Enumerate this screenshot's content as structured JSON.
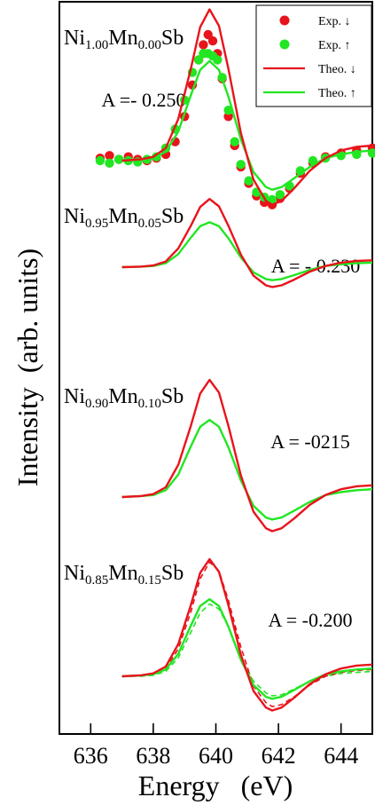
{
  "chart_data": {
    "type": "line",
    "xlabel": "Energy   (eV)",
    "ylabel": "Intensity  (arb. units)",
    "xlim": [
      635,
      645
    ],
    "xticks": [
      636,
      638,
      640,
      642,
      644
    ],
    "legend": {
      "placement": "top-right",
      "entries": [
        {
          "label": "Exp. ↓",
          "kind": "marker",
          "color": "#e8141c"
        },
        {
          "label": "Exp. ↑",
          "kind": "marker",
          "color": "#22e622"
        },
        {
          "label": "Theo. ↓",
          "kind": "line",
          "color": "#e8141c"
        },
        {
          "label": "Theo. ↑",
          "kind": "line",
          "color": "#22e622"
        }
      ]
    },
    "colors": {
      "down": "#e8141c",
      "up": "#22e622"
    },
    "panels": [
      {
        "label": {
          "base": "Ni",
          "s1": "1.00",
          "mid": "Mn",
          "s2": "0.00",
          "tail": "Sb"
        },
        "asym": "A =- 0.250",
        "baseline": 0,
        "down": {
          "x": [
            637,
            637.6,
            638,
            638.4,
            638.8,
            639.2,
            639.5,
            639.8,
            640.1,
            640.4,
            640.8,
            641.2,
            641.6,
            641.8,
            642.1,
            642.5,
            643,
            643.5,
            644,
            644.5,
            645
          ],
          "y": [
            0,
            1,
            3,
            10,
            33,
            73,
            106,
            120,
            107,
            73,
            22,
            -15,
            -32,
            -35,
            -32,
            -22,
            -8,
            2,
            8,
            11,
            12
          ]
        },
        "up": {
          "x": [
            637,
            637.6,
            638,
            638.4,
            638.8,
            639.2,
            639.5,
            639.8,
            640.1,
            640.4,
            640.8,
            641.2,
            641.6,
            641.8,
            642.1,
            642.5,
            643,
            643.5,
            644,
            644.5,
            645
          ],
          "y": [
            0,
            1,
            2,
            7,
            23,
            52,
            72,
            79,
            72,
            51,
            17,
            -9,
            -21,
            -23,
            -21,
            -14,
            -5,
            2,
            5,
            7,
            8
          ]
        },
        "exp_down": {
          "x": [
            636.3,
            636.6,
            636.9,
            637.2,
            637.5,
            637.8,
            638.1,
            638.4,
            638.7,
            639.0,
            639.25,
            639.45,
            639.6,
            639.75,
            639.9,
            640.05,
            640.2,
            640.4,
            640.6,
            640.8,
            641.05,
            641.3,
            641.55,
            641.8,
            642.05,
            642.35,
            642.7,
            643.1,
            643.5,
            644.0,
            644.5,
            645.0
          ],
          "y": [
            2,
            4,
            1,
            3,
            1,
            0,
            2,
            5,
            15,
            35,
            60,
            80,
            92,
            100,
            95,
            85,
            65,
            35,
            12,
            -5,
            -18,
            -28,
            -33,
            -35,
            -30,
            -22,
            -10,
            -2,
            3,
            6,
            8,
            10
          ]
        },
        "exp_up": {
          "x": [
            636.3,
            636.6,
            636.9,
            637.2,
            637.5,
            637.8,
            638.1,
            638.4,
            638.7,
            639.0,
            639.25,
            639.45,
            639.6,
            639.75,
            639.9,
            640.05,
            640.2,
            640.4,
            640.6,
            640.8,
            641.05,
            641.3,
            641.55,
            641.8,
            642.05,
            642.35,
            642.7,
            643.1,
            643.5,
            644.0,
            644.5,
            645.0
          ],
          "y": [
            0,
            -2,
            1,
            0,
            -1,
            1,
            3,
            10,
            25,
            48,
            70,
            80,
            85,
            85,
            83,
            80,
            66,
            40,
            15,
            -3,
            -16,
            -25,
            -29,
            -31,
            -27,
            -20,
            -8,
            0,
            2,
            4,
            5,
            6
          ]
        }
      },
      {
        "label": {
          "base": "Ni",
          "s1": "0.95",
          "mid": "Mn",
          "s2": "0.05",
          "tail": "Sb"
        },
        "asym": "A = - 0.230",
        "baseline": 0,
        "down": {
          "x": [
            637,
            637.6,
            638,
            638.4,
            638.8,
            639.2,
            639.5,
            639.8,
            640.1,
            640.4,
            640.8,
            641.2,
            641.6,
            641.8,
            642.1,
            642.5,
            643,
            643.5,
            644,
            644.5,
            645
          ],
          "y": [
            0,
            1,
            3,
            10,
            33,
            73,
            106,
            120,
            107,
            73,
            22,
            -15,
            -32,
            -35,
            -32,
            -22,
            -8,
            2,
            8,
            11,
            12
          ]
        },
        "up": {
          "x": [
            637,
            637.6,
            638,
            638.4,
            638.8,
            639.2,
            639.5,
            639.8,
            640.1,
            640.4,
            640.8,
            641.2,
            641.6,
            641.8,
            642.1,
            642.5,
            643,
            643.5,
            644,
            644.5,
            645
          ],
          "y": [
            0,
            1,
            2,
            7,
            23,
            52,
            72,
            79,
            72,
            51,
            17,
            -9,
            -21,
            -23,
            -21,
            -14,
            -5,
            2,
            5,
            7,
            8
          ]
        }
      },
      {
        "label": {
          "base": "Ni",
          "s1": "0.90",
          "mid": "Mn",
          "s2": "0.10",
          "tail": "Sb"
        },
        "asym": "A = -0215",
        "baseline": 0,
        "down": {
          "x": [
            637,
            637.6,
            638,
            638.4,
            638.8,
            639.2,
            639.5,
            639.8,
            640.1,
            640.4,
            640.8,
            641.2,
            641.6,
            641.8,
            642.1,
            642.5,
            643,
            643.5,
            644,
            644.5,
            645
          ],
          "y": [
            0,
            1,
            3,
            10,
            33,
            73,
            106,
            120,
            107,
            73,
            22,
            -15,
            -32,
            -35,
            -32,
            -22,
            -8,
            2,
            8,
            11,
            12
          ]
        },
        "up": {
          "x": [
            637,
            637.6,
            638,
            638.4,
            638.8,
            639.2,
            639.5,
            639.8,
            640.1,
            640.4,
            640.8,
            641.2,
            641.6,
            641.8,
            642.1,
            642.5,
            643,
            643.5,
            644,
            644.5,
            645
          ],
          "y": [
            0,
            1,
            2,
            7,
            23,
            52,
            72,
            79,
            72,
            51,
            17,
            -9,
            -21,
            -23,
            -21,
            -14,
            -5,
            2,
            5,
            7,
            8
          ]
        }
      },
      {
        "label": {
          "base": "Ni",
          "s1": "0.85",
          "mid": "Mn",
          "s2": "0.15",
          "tail": "Sb"
        },
        "asym": "A = -0.200",
        "baseline": 0,
        "down": {
          "x": [
            637,
            637.6,
            638,
            638.4,
            638.8,
            639.2,
            639.5,
            639.8,
            640.1,
            640.4,
            640.8,
            641.2,
            641.6,
            641.8,
            642.1,
            642.5,
            643,
            643.5,
            644,
            644.5,
            645
          ],
          "y": [
            0,
            1,
            3,
            10,
            33,
            73,
            106,
            120,
            107,
            73,
            22,
            -15,
            -32,
            -35,
            -32,
            -22,
            -8,
            2,
            8,
            11,
            12
          ]
        },
        "up": {
          "x": [
            637,
            637.6,
            638,
            638.4,
            638.8,
            639.2,
            639.5,
            639.8,
            640.1,
            640.4,
            640.8,
            641.2,
            641.6,
            641.8,
            642.1,
            642.5,
            643,
            643.5,
            644,
            644.5,
            645
          ],
          "y": [
            0,
            1,
            2,
            7,
            23,
            52,
            72,
            79,
            72,
            51,
            17,
            -9,
            -21,
            -23,
            -21,
            -14,
            -5,
            2,
            5,
            7,
            8
          ]
        },
        "down_dashed": {
          "x": [
            637,
            637.6,
            638,
            638.4,
            638.8,
            639.2,
            639.5,
            639.8,
            640.1,
            640.4,
            640.8,
            641.2,
            641.6,
            641.8,
            642.1,
            642.5,
            643,
            643.5,
            644,
            644.5,
            645
          ],
          "y": [
            0,
            1,
            2,
            8,
            28,
            66,
            100,
            117,
            108,
            78,
            30,
            -10,
            -27,
            -31,
            -29,
            -21,
            -9,
            0,
            4,
            6,
            7
          ]
        },
        "up_dashed": {
          "x": [
            637,
            637.6,
            638,
            638.4,
            638.8,
            639.2,
            639.5,
            639.8,
            640.1,
            640.4,
            640.8,
            641.2,
            641.6,
            641.8,
            642.1,
            642.5,
            643,
            643.5,
            644,
            644.5,
            645
          ],
          "y": [
            0,
            0,
            1,
            5,
            19,
            45,
            65,
            74,
            69,
            51,
            19,
            -5,
            -17,
            -20,
            -19,
            -13,
            -5,
            0,
            3,
            4,
            5
          ]
        }
      }
    ]
  }
}
